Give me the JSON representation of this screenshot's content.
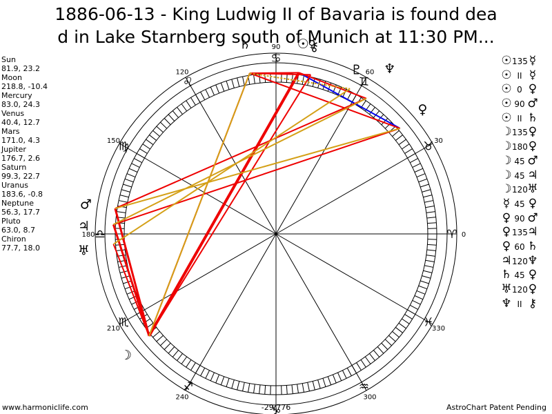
{
  "title": {
    "line1": "1886-06-13 - King Ludwig II of Bavaria is found dea",
    "line2": "d in Lake Starnberg south of Munich at 11:30 PM..."
  },
  "planets": [
    {
      "name": "Sun",
      "coords": "81.9, 23.2",
      "glyph": "☉",
      "lon": 81.9
    },
    {
      "name": "Moon",
      "coords": "218.8, -10.4",
      "glyph": "☽",
      "lon": 218.8
    },
    {
      "name": "Mercury",
      "coords": "83.0, 24.3",
      "glyph": "☿",
      "lon": 83.0
    },
    {
      "name": "Venus",
      "coords": "40.4, 12.7",
      "glyph": "♀",
      "lon": 40.4
    },
    {
      "name": "Mars",
      "coords": "171.0, 4.3",
      "glyph": "♂",
      "lon": 171.0
    },
    {
      "name": "Jupiter",
      "coords": "176.7, 2.6",
      "glyph": "♃",
      "lon": 176.7
    },
    {
      "name": "Saturn",
      "coords": "99.3, 22.7",
      "glyph": "♄",
      "lon": 99.3
    },
    {
      "name": "Uranus",
      "coords": "183.6, -0.8",
      "glyph": "♅",
      "lon": 183.6
    },
    {
      "name": "Neptune",
      "coords": "56.3, 17.7",
      "glyph": "♆",
      "lon": 56.3
    },
    {
      "name": "Pluto",
      "coords": "63.0, 8.7",
      "glyph": "♇",
      "lon": 63.0
    },
    {
      "name": "Chiron",
      "coords": "77.7, 18.0",
      "glyph": "⚷",
      "lon": 77.7
    }
  ],
  "aspects": [
    {
      "p1": "☉",
      "asp": "135",
      "p2": "☿"
    },
    {
      "p1": "☉",
      "asp": "II",
      "p2": "☿"
    },
    {
      "p1": "☉",
      "asp": "0",
      "p2": "♀"
    },
    {
      "p1": "☉",
      "asp": "90",
      "p2": "♂"
    },
    {
      "p1": "☉",
      "asp": "II",
      "p2": "♄"
    },
    {
      "p1": "☽",
      "asp": "135",
      "p2": "♀"
    },
    {
      "p1": "☽",
      "asp": "180",
      "p2": "♀"
    },
    {
      "p1": "☽",
      "asp": "45",
      "p2": "♂"
    },
    {
      "p1": "☽",
      "asp": "45",
      "p2": "♃"
    },
    {
      "p1": "☽",
      "asp": "120",
      "p2": "♅"
    },
    {
      "p1": "☿",
      "asp": "45",
      "p2": "♀"
    },
    {
      "p1": "♀",
      "asp": "90",
      "p2": "♂"
    },
    {
      "p1": "♀",
      "asp": "135",
      "p2": "♃"
    },
    {
      "p1": "♀",
      "asp": "60",
      "p2": "♄"
    },
    {
      "p1": "♃",
      "asp": "120",
      "p2": "♆"
    },
    {
      "p1": "♄",
      "asp": "45",
      "p2": "♀"
    },
    {
      "p1": "♅",
      "asp": "120",
      "p2": "♀"
    },
    {
      "p1": "♆",
      "asp": "II",
      "p2": "⚷"
    }
  ],
  "degree_labels": [
    "0",
    "30",
    "60",
    "90",
    "120",
    "150",
    "180",
    "210",
    "240",
    "270",
    "300",
    "330"
  ],
  "signs": [
    "♈",
    "♉",
    "♊",
    "♋",
    "♌",
    "♍",
    "♎",
    "♏",
    "♐",
    "♑",
    "♒",
    "♓"
  ],
  "chart_lines": [
    {
      "from": "Sun",
      "to": "Venus",
      "color": "#0000ee",
      "width": 2
    },
    {
      "from": "Sun",
      "to": "Moon",
      "color": "#ee0000",
      "width": 4
    },
    {
      "from": "Sun",
      "to": "Saturn",
      "color": "#ee0000",
      "width": 2
    },
    {
      "from": "Sun",
      "to": "Neptune",
      "color": "#ee0000",
      "width": 2
    },
    {
      "from": "Moon",
      "to": "Mars",
      "color": "#ee0000",
      "width": 3
    },
    {
      "from": "Moon",
      "to": "Jupiter",
      "color": "#ee0000",
      "width": 3
    },
    {
      "from": "Moon",
      "to": "Uranus",
      "color": "#ee0000",
      "width": 2
    },
    {
      "from": "Moon",
      "to": "Saturn",
      "color": "#ee0000",
      "width": 2
    },
    {
      "from": "Moon",
      "to": "Chiron",
      "color": "#ee0000",
      "width": 2
    },
    {
      "from": "Venus",
      "to": "Jupiter",
      "color": "#ee0000",
      "width": 2
    },
    {
      "from": "Saturn",
      "to": "Venus",
      "color": "#ee0000",
      "width": 2
    },
    {
      "from": "Mars",
      "to": "Neptune",
      "color": "#ee0000",
      "width": 2
    },
    {
      "from": "Saturn",
      "to": "Chiron",
      "color": "#ee0000",
      "width": 2
    },
    {
      "from": "Saturn",
      "to": "Moon",
      "color": "#d4a017",
      "width": 2
    },
    {
      "from": "Venus",
      "to": "Mars",
      "color": "#d4a017",
      "width": 2
    },
    {
      "from": "Neptune",
      "to": "Jupiter",
      "color": "#d4a017",
      "width": 2
    },
    {
      "from": "Pluto",
      "to": "Uranus",
      "color": "#d4a017",
      "width": 2
    },
    {
      "from": "Saturn",
      "to": "Pluto",
      "color": "#d4a017",
      "width": 2,
      "dashed": true
    }
  ],
  "colors": {
    "red": "#ee0000",
    "blue": "#0000ee",
    "gold": "#d4a017",
    "ring": "#000000"
  },
  "footer": {
    "left": "www.harmoniclife.com",
    "center": "-29,776",
    "right": "AstroChart Patent Pending"
  }
}
